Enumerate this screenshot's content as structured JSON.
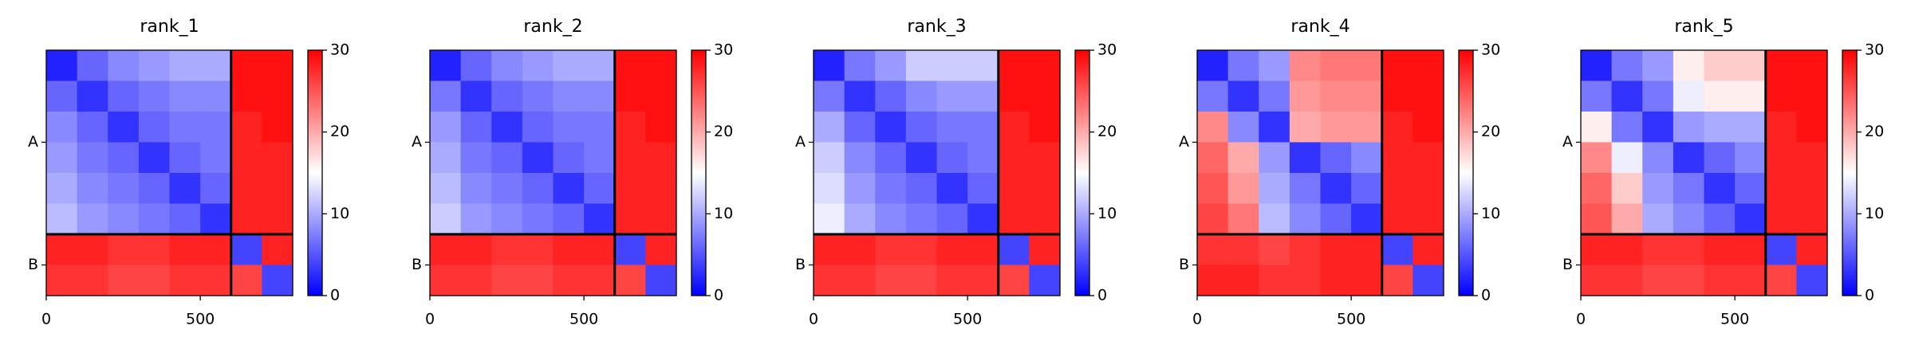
{
  "chart_data": [
    {
      "type": "heatmap",
      "title": "rank_1",
      "xlim": [
        0,
        800
      ],
      "ylim": [
        800,
        0
      ],
      "xticks": [
        0,
        500
      ],
      "yticks": [
        {
          "value": 300,
          "label": "A"
        },
        {
          "value": 700,
          "label": "B"
        }
      ],
      "boundaries": [
        600
      ],
      "clim": [
        0,
        30
      ],
      "cticks": [
        0,
        10,
        20,
        30
      ],
      "colormap": [
        "#0000ff",
        "#ffffff",
        "#ff0000"
      ],
      "z": [
        [
          2,
          6,
          8,
          9,
          10,
          10,
          29,
          29
        ],
        [
          6,
          3,
          6,
          7,
          8,
          8,
          29,
          29
        ],
        [
          8,
          6,
          3,
          6,
          7,
          7,
          28,
          29
        ],
        [
          9,
          7,
          6,
          3,
          6,
          7,
          28,
          28
        ],
        [
          10,
          8,
          7,
          6,
          3,
          6,
          28,
          28
        ],
        [
          11,
          9,
          8,
          7,
          6,
          3,
          28,
          28
        ],
        [
          28,
          28,
          27,
          27,
          28,
          28,
          4,
          28
        ],
        [
          27,
          27,
          26,
          26,
          27,
          27,
          26,
          4
        ]
      ]
    },
    {
      "type": "heatmap",
      "title": "rank_2",
      "xlim": [
        0,
        800
      ],
      "ylim": [
        800,
        0
      ],
      "xticks": [
        0,
        500
      ],
      "yticks": [
        {
          "value": 300,
          "label": "A"
        },
        {
          "value": 700,
          "label": "B"
        }
      ],
      "boundaries": [
        600
      ],
      "clim": [
        0,
        30
      ],
      "cticks": [
        0,
        10,
        20,
        30
      ],
      "colormap": [
        "#0000ff",
        "#ffffff",
        "#ff0000"
      ],
      "z": [
        [
          2,
          6,
          8,
          9,
          10,
          10,
          29,
          29
        ],
        [
          7,
          3,
          6,
          7,
          8,
          8,
          29,
          29
        ],
        [
          9,
          6,
          3,
          6,
          7,
          7,
          28,
          29
        ],
        [
          10,
          7,
          6,
          3,
          6,
          7,
          28,
          28
        ],
        [
          11,
          8,
          7,
          6,
          3,
          6,
          28,
          28
        ],
        [
          12,
          9,
          8,
          7,
          6,
          3,
          28,
          28
        ],
        [
          28,
          28,
          27,
          27,
          28,
          28,
          4,
          28
        ],
        [
          27,
          27,
          26,
          26,
          27,
          27,
          26,
          4
        ]
      ]
    },
    {
      "type": "heatmap",
      "title": "rank_3",
      "xlim": [
        0,
        800
      ],
      "ylim": [
        800,
        0
      ],
      "xticks": [
        0,
        500
      ],
      "yticks": [
        {
          "value": 300,
          "label": "A"
        },
        {
          "value": 700,
          "label": "B"
        }
      ],
      "boundaries": [
        600
      ],
      "clim": [
        0,
        30
      ],
      "cticks": [
        0,
        10,
        20,
        30
      ],
      "colormap": [
        "#0000ff",
        "#ffffff",
        "#ff0000"
      ],
      "z": [
        [
          2,
          7,
          9,
          12,
          12,
          12,
          29,
          29
        ],
        [
          7,
          3,
          6,
          8,
          9,
          9,
          29,
          29
        ],
        [
          10,
          6,
          3,
          6,
          7,
          7,
          28,
          29
        ],
        [
          12,
          8,
          6,
          3,
          6,
          7,
          28,
          28
        ],
        [
          13,
          9,
          7,
          6,
          3,
          6,
          28,
          28
        ],
        [
          14,
          10,
          8,
          7,
          6,
          3,
          28,
          28
        ],
        [
          28,
          28,
          27,
          27,
          28,
          28,
          4,
          28
        ],
        [
          27,
          27,
          26,
          26,
          27,
          27,
          26,
          4
        ]
      ]
    },
    {
      "type": "heatmap",
      "title": "rank_4",
      "xlim": [
        0,
        800
      ],
      "ylim": [
        800,
        0
      ],
      "xticks": [
        0,
        500
      ],
      "yticks": [
        {
          "value": 300,
          "label": "A"
        },
        {
          "value": 700,
          "label": "B"
        }
      ],
      "boundaries": [
        600
      ],
      "clim": [
        0,
        30
      ],
      "cticks": [
        0,
        10,
        20,
        30
      ],
      "colormap": [
        "#0000ff",
        "#ffffff",
        "#ff0000"
      ],
      "z": [
        [
          2,
          7,
          9,
          22,
          23,
          23,
          29,
          29
        ],
        [
          7,
          3,
          7,
          21,
          22,
          22,
          29,
          29
        ],
        [
          22,
          8,
          3,
          20,
          21,
          21,
          28,
          29
        ],
        [
          24,
          20,
          9,
          3,
          6,
          8,
          28,
          28
        ],
        [
          25,
          21,
          10,
          7,
          3,
          6,
          28,
          28
        ],
        [
          26,
          23,
          11,
          8,
          6,
          3,
          28,
          28
        ],
        [
          27,
          27,
          26,
          27,
          28,
          28,
          4,
          28
        ],
        [
          28,
          28,
          27,
          27,
          28,
          28,
          26,
          4
        ]
      ]
    },
    {
      "type": "heatmap",
      "title": "rank_5",
      "xlim": [
        0,
        800
      ],
      "ylim": [
        800,
        0
      ],
      "xticks": [
        0,
        500
      ],
      "yticks": [
        {
          "value": 300,
          "label": "A"
        },
        {
          "value": 700,
          "label": "B"
        }
      ],
      "boundaries": [
        600
      ],
      "clim": [
        0,
        30
      ],
      "cticks": [
        0,
        10,
        20,
        30
      ],
      "colormap": [
        "#0000ff",
        "#ffffff",
        "#ff0000"
      ],
      "z": [
        [
          2,
          7,
          9,
          16,
          18,
          18,
          29,
          29
        ],
        [
          7,
          3,
          7,
          14,
          16,
          16,
          29,
          29
        ],
        [
          16,
          7,
          3,
          9,
          10,
          10,
          28,
          29
        ],
        [
          22,
          14,
          8,
          3,
          6,
          8,
          28,
          28
        ],
        [
          24,
          18,
          9,
          7,
          3,
          6,
          28,
          28
        ],
        [
          25,
          20,
          10,
          8,
          6,
          3,
          28,
          28
        ],
        [
          28,
          28,
          27,
          27,
          28,
          28,
          4,
          28
        ],
        [
          27,
          27,
          26,
          26,
          27,
          27,
          26,
          4
        ]
      ]
    }
  ]
}
